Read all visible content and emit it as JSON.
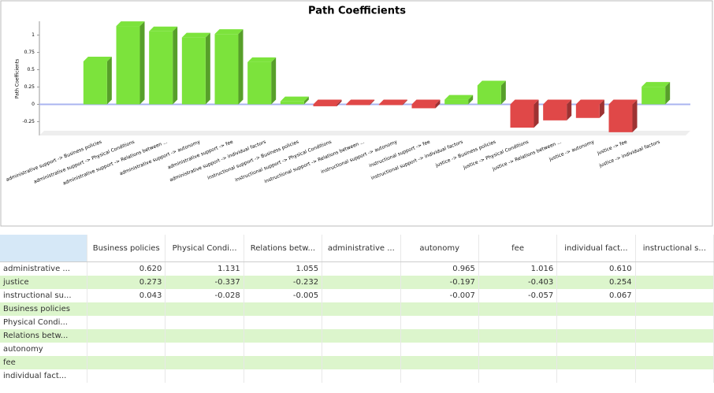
{
  "chart_data": {
    "type": "bar",
    "title": "Path Coefficients",
    "y_label": "Path Coefficients",
    "categories": [
      "administrative support -> Business policies",
      "administrative support -> Physical Conditions",
      "administrative support -> Relations between ...",
      "administrative support -> autonomy",
      "administrative support -> fee",
      "administrative support -> individual factors",
      "instructional support -> Business policies",
      "instructional support -> Physical Conditions",
      "instructional support -> Relations between ...",
      "instructional support -> autonomy",
      "instructional support -> fee",
      "instructional support -> individual factors",
      "justice -> Business policies",
      "justice -> Physical Conditions",
      "justice -> Relations between ...",
      "justice -> autonomy",
      "justice -> fee",
      "justice -> individual factors"
    ],
    "values": [
      0.62,
      1.131,
      1.055,
      0.965,
      1.016,
      0.61,
      0.043,
      -0.028,
      -0.005,
      -0.007,
      -0.057,
      0.067,
      0.273,
      -0.337,
      -0.232,
      -0.197,
      -0.403,
      0.254
    ],
    "positive_color": "#7ce33c",
    "negative_color": "#e04848",
    "ylim": [
      -0.45,
      1.2
    ],
    "yticks": [
      {
        "value": -0.25,
        "label": "-0.25"
      },
      0,
      {
        "value": 0.25,
        "label": "0.25"
      },
      {
        "value": 0.5,
        "label": "0.5"
      },
      {
        "value": 0.75,
        "label": "0.75"
      },
      1
    ]
  },
  "table": {
    "columns": [
      "Business policies",
      "Physical Condi...",
      "Relations betw...",
      "administrative ...",
      "autonomy",
      "fee",
      "individual fact...",
      "instructional s..."
    ],
    "rows": [
      {
        "label": "administrative ...",
        "cells": [
          "0.620",
          "1.131",
          "1.055",
          null,
          "0.965",
          "1.016",
          "0.610",
          null
        ]
      },
      {
        "label": "justice",
        "cells": [
          "0.273",
          "-0.337",
          "-0.232",
          null,
          "-0.197",
          "-0.403",
          "0.254",
          null
        ]
      },
      {
        "label": "instructional su...",
        "cells": [
          "0.043",
          "-0.028",
          "-0.005",
          null,
          "-0.007",
          "-0.057",
          "0.067",
          null
        ]
      },
      {
        "label": "Business policies",
        "cells": [
          null,
          null,
          null,
          null,
          null,
          null,
          null,
          null
        ]
      },
      {
        "label": "Physical Condi...",
        "cells": [
          null,
          null,
          null,
          null,
          null,
          null,
          null,
          null
        ]
      },
      {
        "label": "Relations betw...",
        "cells": [
          null,
          null,
          null,
          null,
          null,
          null,
          null,
          null
        ]
      },
      {
        "label": "autonomy",
        "cells": [
          null,
          null,
          null,
          null,
          null,
          null,
          null,
          null
        ]
      },
      {
        "label": "fee",
        "cells": [
          null,
          null,
          null,
          null,
          null,
          null,
          null,
          null
        ]
      },
      {
        "label": "individual fact...",
        "cells": [
          null,
          null,
          null,
          null,
          null,
          null,
          null,
          null
        ]
      }
    ]
  }
}
